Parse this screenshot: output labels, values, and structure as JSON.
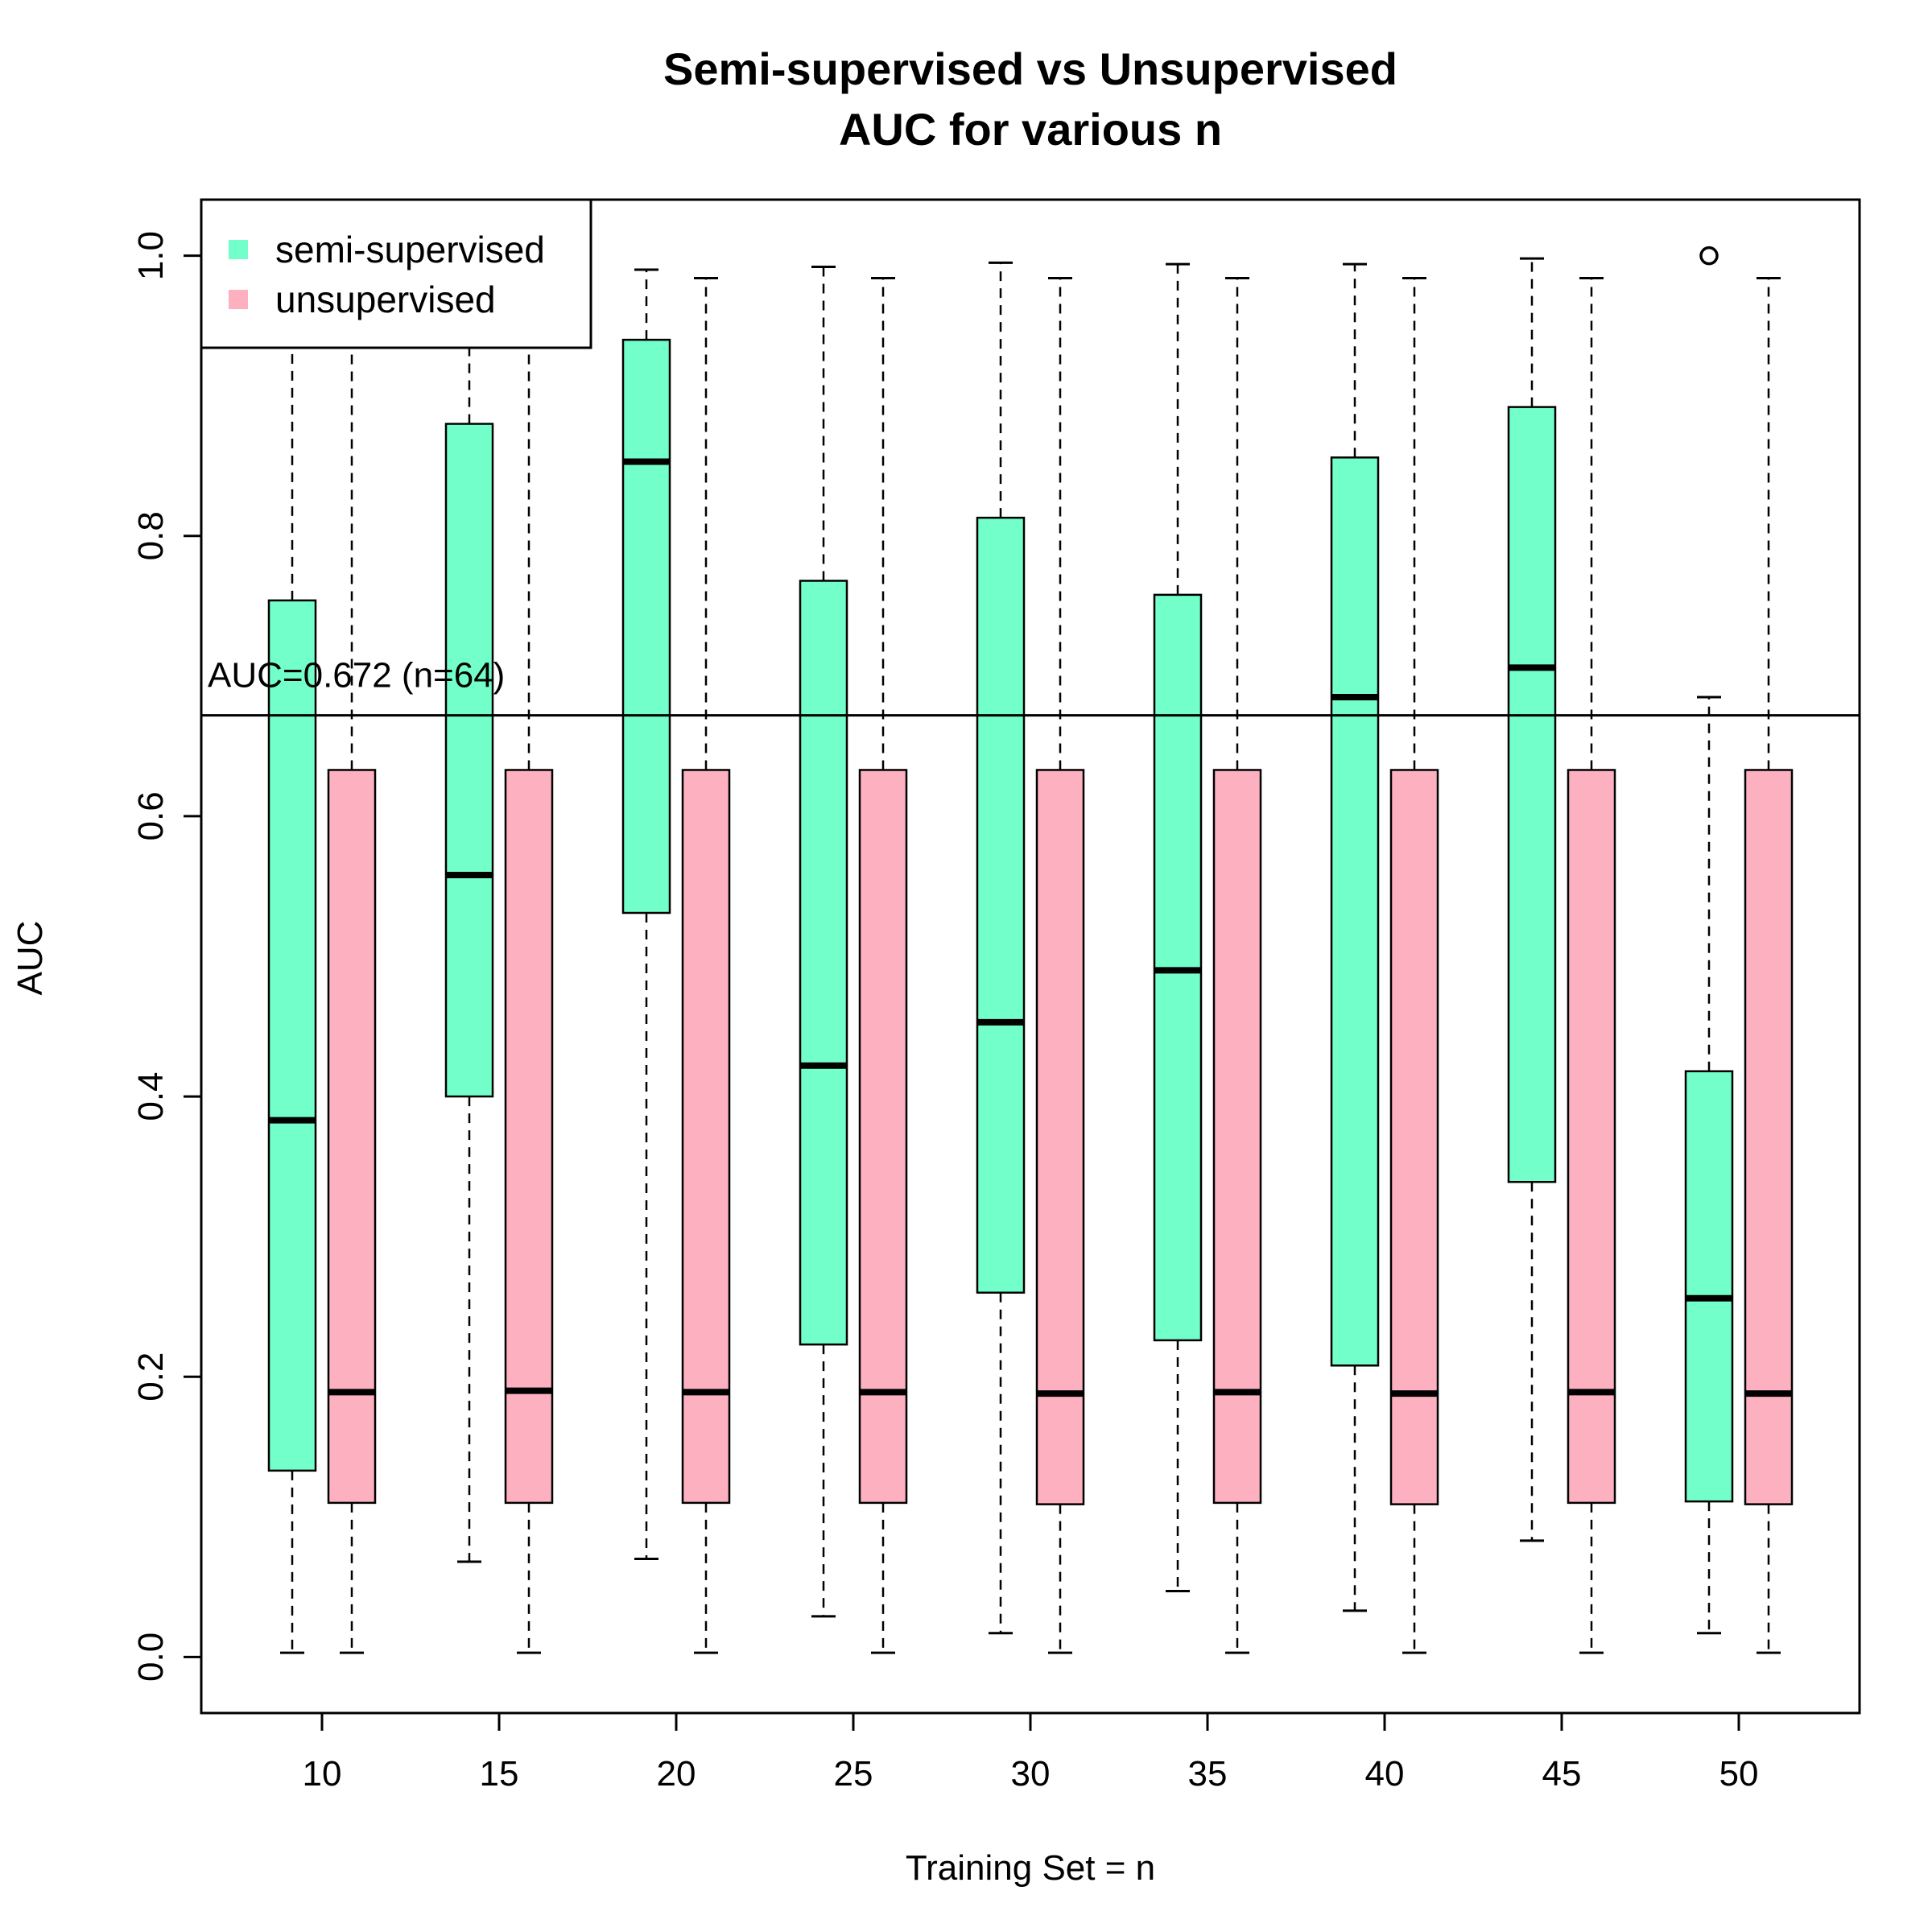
{
  "chart_data": {
    "type": "boxplot",
    "title": [
      "Semi-supervised vs Unsupervised",
      "AUC for various n"
    ],
    "xlabel": "Training Set = n",
    "ylabel": "AUC",
    "ylim": [
      -0.04,
      1.04
    ],
    "y_ticks": [
      0.0,
      0.2,
      0.4,
      0.6,
      0.8,
      1.0
    ],
    "y_tick_labels": [
      "0.0",
      "0.2",
      "0.4",
      "0.6",
      "0.8",
      "1.0"
    ],
    "categories": [
      "10",
      "15",
      "20",
      "25",
      "30",
      "35",
      "40",
      "45",
      "50"
    ],
    "reference_line": {
      "value": 0.672,
      "label": "AUC=0.672 (n=64)"
    },
    "legend": {
      "position": "top-left",
      "entries": [
        "semi-supervised",
        "unsupervised"
      ]
    },
    "colors": {
      "semi-supervised": "#73ffc9",
      "unsupervised": "#fcb0c0",
      "outline": "#000000"
    },
    "series": [
      {
        "name": "semi-supervised",
        "boxes": [
          {
            "min": 0.003,
            "q1": 0.133,
            "median": 0.383,
            "q3": 0.754,
            "max": 1.0,
            "outliers": []
          },
          {
            "min": 0.068,
            "q1": 0.4,
            "median": 0.558,
            "q3": 0.88,
            "max": 1.0,
            "outliers": []
          },
          {
            "min": 0.07,
            "q1": 0.531,
            "median": 0.853,
            "q3": 0.94,
            "max": 0.99,
            "outliers": []
          },
          {
            "min": 0.029,
            "q1": 0.223,
            "median": 0.422,
            "q3": 0.768,
            "max": 0.992,
            "outliers": []
          },
          {
            "min": 0.017,
            "q1": 0.26,
            "median": 0.453,
            "q3": 0.813,
            "max": 0.995,
            "outliers": []
          },
          {
            "min": 0.047,
            "q1": 0.226,
            "median": 0.49,
            "q3": 0.758,
            "max": 0.994,
            "outliers": []
          },
          {
            "min": 0.033,
            "q1": 0.208,
            "median": 0.685,
            "q3": 0.856,
            "max": 0.994,
            "outliers": []
          },
          {
            "min": 0.083,
            "q1": 0.339,
            "median": 0.706,
            "q3": 0.892,
            "max": 0.998,
            "outliers": []
          },
          {
            "min": 0.017,
            "q1": 0.111,
            "median": 0.256,
            "q3": 0.418,
            "max": 0.685,
            "outliers": [
              1.0
            ]
          }
        ]
      },
      {
        "name": "unsupervised",
        "boxes": [
          {
            "min": 0.003,
            "q1": 0.11,
            "median": 0.189,
            "q3": 0.633,
            "max": 1.0,
            "outliers": []
          },
          {
            "min": 0.003,
            "q1": 0.11,
            "median": 0.19,
            "q3": 0.633,
            "max": 1.0,
            "outliers": []
          },
          {
            "min": 0.003,
            "q1": 0.11,
            "median": 0.189,
            "q3": 0.633,
            "max": 0.984,
            "outliers": []
          },
          {
            "min": 0.003,
            "q1": 0.11,
            "median": 0.189,
            "q3": 0.633,
            "max": 0.984,
            "outliers": []
          },
          {
            "min": 0.003,
            "q1": 0.109,
            "median": 0.188,
            "q3": 0.633,
            "max": 0.984,
            "outliers": []
          },
          {
            "min": 0.003,
            "q1": 0.11,
            "median": 0.189,
            "q3": 0.633,
            "max": 0.984,
            "outliers": []
          },
          {
            "min": 0.003,
            "q1": 0.109,
            "median": 0.188,
            "q3": 0.633,
            "max": 0.984,
            "outliers": []
          },
          {
            "min": 0.003,
            "q1": 0.11,
            "median": 0.189,
            "q3": 0.633,
            "max": 0.984,
            "outliers": []
          },
          {
            "min": 0.003,
            "q1": 0.109,
            "median": 0.188,
            "q3": 0.633,
            "max": 0.984,
            "outliers": []
          }
        ]
      }
    ]
  }
}
